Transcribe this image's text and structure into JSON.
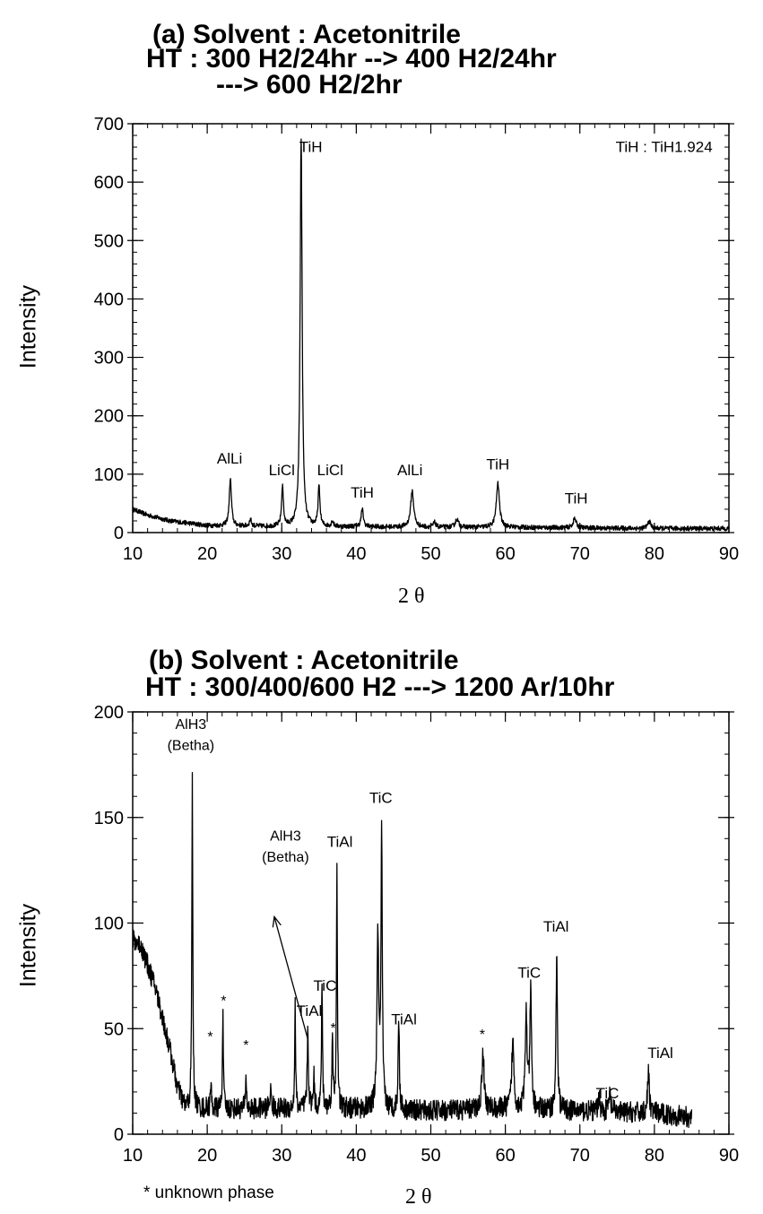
{
  "panels": [
    {
      "title_line1": "(a) Solvent : Acetonitrile",
      "title_line2": "HT : 300 H2/24hr --> 400 H2/24hr",
      "title_line3": "---> 600 H2/2hr",
      "ylabel": "Intensity",
      "xlabel": "2 θ",
      "note": ""
    },
    {
      "title_line1": "(b) Solvent : Acetonitrile",
      "title_line2": "HT : 300/400/600 H2 ---> 1200 Ar/10hr",
      "title_line3": "",
      "ylabel": "Intensity",
      "xlabel": "2 θ",
      "note": "* unknown phase"
    }
  ],
  "chart_data": [
    {
      "type": "line",
      "title": "(a) Solvent : Acetonitrile HT : 300 H2/24hr --> 400 H2/24hr ---> 600 H2/2hr",
      "xlabel": "2 θ",
      "ylabel": "Intensity",
      "xlim": [
        10,
        90
      ],
      "ylim": [
        0,
        700
      ],
      "xticks": [
        10,
        20,
        30,
        40,
        50,
        60,
        70,
        80,
        90
      ],
      "xtick_labels": [
        "10",
        "20",
        "30",
        "40",
        "50",
        "60",
        "70",
        "80",
        "90"
      ],
      "yticks": [
        0,
        100,
        200,
        300,
        400,
        500,
        600,
        700
      ],
      "ytick_labels": [
        "0",
        "100",
        "200",
        "300",
        "400",
        "500",
        "600",
        "700"
      ],
      "baseline": [
        [
          10,
          40
        ],
        [
          12,
          30
        ],
        [
          15,
          20
        ],
        [
          20,
          12
        ],
        [
          30,
          10
        ],
        [
          40,
          10
        ],
        [
          50,
          9
        ],
        [
          60,
          9
        ],
        [
          70,
          8
        ],
        [
          80,
          7
        ],
        [
          90,
          7
        ]
      ],
      "peaks": [
        {
          "x": 23.1,
          "height": 80,
          "width": 0.35
        },
        {
          "x": 25.8,
          "height": 12,
          "width": 0.3
        },
        {
          "x": 30.1,
          "height": 68,
          "width": 0.3
        },
        {
          "x": 32.6,
          "height": 665,
          "width": 0.32
        },
        {
          "x": 35.0,
          "height": 68,
          "width": 0.3
        },
        {
          "x": 36.8,
          "height": 10,
          "width": 0.3
        },
        {
          "x": 40.8,
          "height": 30,
          "width": 0.35
        },
        {
          "x": 47.5,
          "height": 62,
          "width": 0.5
        },
        {
          "x": 50.5,
          "height": 8,
          "width": 0.4
        },
        {
          "x": 53.5,
          "height": 14,
          "width": 0.5
        },
        {
          "x": 59.0,
          "height": 75,
          "width": 0.5
        },
        {
          "x": 69.3,
          "height": 16,
          "width": 0.5
        },
        {
          "x": 79.3,
          "height": 12,
          "width": 0.5
        }
      ],
      "noise": 4,
      "annotations": [
        {
          "text": "AlLi",
          "x": 23.0,
          "y": 118,
          "size": 17
        },
        {
          "text": "LiCl",
          "x": 30.0,
          "y": 98,
          "size": 17
        },
        {
          "text": "TiH",
          "x": 33.9,
          "y": 652,
          "size": 17
        },
        {
          "text": "LiCl",
          "x": 36.5,
          "y": 98,
          "size": 17
        },
        {
          "text": "TiH",
          "x": 40.8,
          "y": 60,
          "size": 17
        },
        {
          "text": "AlLi",
          "x": 47.2,
          "y": 98,
          "size": 17
        },
        {
          "text": "TiH",
          "x": 59.0,
          "y": 108,
          "size": 17
        },
        {
          "text": "TiH",
          "x": 69.5,
          "y": 50,
          "size": 17
        },
        {
          "text": "TiH : TiH1.924",
          "x": 81.3,
          "y": 652,
          "size": 17
        }
      ],
      "arrows": []
    },
    {
      "type": "line",
      "title": "(b) Solvent : Acetonitrile HT : 300/400/600 H2 ---> 1200 Ar/10hr",
      "xlabel": "2 θ",
      "ylabel": "Intensity",
      "xlim": [
        10,
        90
      ],
      "ylim": [
        0,
        200
      ],
      "data_end": 85,
      "xticks": [
        10,
        20,
        30,
        40,
        50,
        60,
        70,
        80,
        90
      ],
      "xtick_labels": [
        "10",
        "20",
        "30",
        "40",
        "50",
        "60",
        "70",
        "80",
        "90"
      ],
      "yticks": [
        0,
        50,
        100,
        150,
        200
      ],
      "ytick_labels": [
        "0",
        "50",
        "100",
        "150",
        "200"
      ],
      "baseline": [
        [
          10,
          92
        ],
        [
          11,
          90
        ],
        [
          12,
          80
        ],
        [
          13,
          70
        ],
        [
          14,
          55
        ],
        [
          15,
          40
        ],
        [
          16,
          22
        ],
        [
          17,
          13
        ],
        [
          20,
          12
        ],
        [
          30,
          12
        ],
        [
          40,
          12
        ],
        [
          50,
          11
        ],
        [
          60,
          12
        ],
        [
          70,
          11
        ],
        [
          80,
          10
        ],
        [
          85,
          8
        ]
      ],
      "peaks": [
        {
          "x": 18.0,
          "height": 155,
          "width": 0.15
        },
        {
          "x": 20.5,
          "height": 10,
          "width": 0.2
        },
        {
          "x": 22.1,
          "height": 45,
          "width": 0.15
        },
        {
          "x": 25.2,
          "height": 17,
          "width": 0.15
        },
        {
          "x": 28.5,
          "height": 8,
          "width": 0.3
        },
        {
          "x": 31.8,
          "height": 48,
          "width": 0.15
        },
        {
          "x": 33.5,
          "height": 35,
          "width": 0.2
        },
        {
          "x": 34.3,
          "height": 15,
          "width": 0.2
        },
        {
          "x": 35.4,
          "height": 62,
          "width": 0.15
        },
        {
          "x": 36.8,
          "height": 30,
          "width": 0.2
        },
        {
          "x": 37.4,
          "height": 115,
          "width": 0.15
        },
        {
          "x": 42.9,
          "height": 80,
          "width": 0.3
        },
        {
          "x": 43.4,
          "height": 128,
          "width": 0.2
        },
        {
          "x": 45.7,
          "height": 42,
          "width": 0.2
        },
        {
          "x": 57.0,
          "height": 28,
          "width": 0.35
        },
        {
          "x": 61.0,
          "height": 32,
          "width": 0.35
        },
        {
          "x": 62.8,
          "height": 45,
          "width": 0.3
        },
        {
          "x": 63.4,
          "height": 55,
          "width": 0.25
        },
        {
          "x": 66.9,
          "height": 75,
          "width": 0.22
        },
        {
          "x": 72.6,
          "height": 8,
          "width": 0.25
        },
        {
          "x": 74.0,
          "height": 8,
          "width": 0.3
        },
        {
          "x": 79.2,
          "height": 18,
          "width": 0.3
        }
      ],
      "noise": 5,
      "annotations": [
        {
          "text": "AlH3",
          "x": 17.8,
          "y": 192,
          "size": 16
        },
        {
          "text": "(Betha)",
          "x": 17.8,
          "y": 182,
          "size": 16
        },
        {
          "text": "*",
          "x": 20.4,
          "y": 44,
          "size": 16
        },
        {
          "text": "*",
          "x": 22.2,
          "y": 61,
          "size": 16
        },
        {
          "text": "*",
          "x": 25.2,
          "y": 40,
          "size": 16
        },
        {
          "text": "AlH3",
          "x": 30.5,
          "y": 139,
          "size": 16
        },
        {
          "text": "(Betha)",
          "x": 30.5,
          "y": 129,
          "size": 16
        },
        {
          "text": "TiAl",
          "x": 33.7,
          "y": 56,
          "size": 17
        },
        {
          "text": "TiC",
          "x": 35.8,
          "y": 68,
          "size": 17
        },
        {
          "text": "TiAl",
          "x": 37.8,
          "y": 136,
          "size": 17
        },
        {
          "text": "*",
          "x": 36.9,
          "y": 48,
          "size": 16
        },
        {
          "text": "TiC",
          "x": 43.3,
          "y": 157,
          "size": 17
        },
        {
          "text": "TiAl",
          "x": 46.4,
          "y": 52,
          "size": 17
        },
        {
          "text": "*",
          "x": 56.9,
          "y": 45,
          "size": 16
        },
        {
          "text": "TiC",
          "x": 63.2,
          "y": 74,
          "size": 17
        },
        {
          "text": "TiAl",
          "x": 66.8,
          "y": 96,
          "size": 17
        },
        {
          "text": "TiC",
          "x": 73.7,
          "y": 17,
          "size": 17
        },
        {
          "text": "TiAl",
          "x": 80.8,
          "y": 36,
          "size": 17
        }
      ],
      "arrows": [
        {
          "from": [
            33.5,
            45
          ],
          "to": [
            29.0,
            103
          ]
        }
      ]
    }
  ]
}
